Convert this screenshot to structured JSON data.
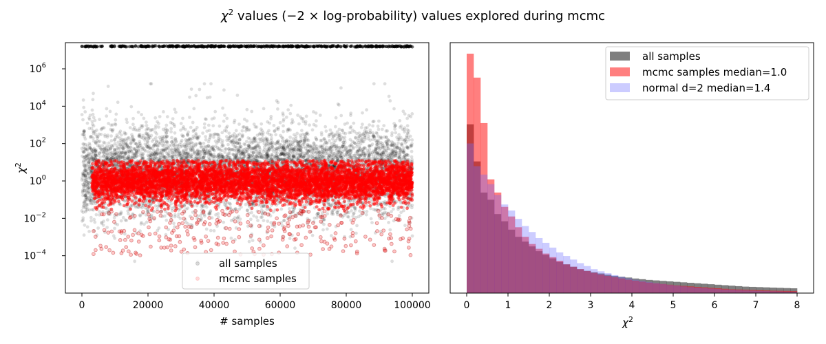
{
  "figure": {
    "title_pre": "χ",
    "title_sup": "2",
    "title_post": " values (−2 × log-probability) values explored during mcmc"
  },
  "chart_data": [
    {
      "type": "scatter",
      "xlabel": "# samples",
      "ylabel_base": "χ",
      "ylabel_sup": "2",
      "x_range": [
        -5000,
        105000
      ],
      "y_scale": "log",
      "y_range_log10": [
        -6,
        7.4
      ],
      "x_ticks": [
        0,
        20000,
        40000,
        60000,
        80000,
        100000
      ],
      "x_tick_labels": [
        "0",
        "20000",
        "40000",
        "60000",
        "80000",
        "100000"
      ],
      "y_ticks_log10": [
        -4,
        -2,
        0,
        2,
        4,
        6
      ],
      "y_tick_base": "10",
      "y_tick_exponents": [
        "−4",
        "−2",
        "0",
        "2",
        "4",
        "6"
      ],
      "grid": false,
      "legend_placement": "bottom-center",
      "series": [
        {
          "name": "all samples",
          "color": "#000000",
          "x_range": [
            0,
            100000
          ],
          "upper_band_log10": 7.2,
          "core_log10_range": [
            -1.5,
            2.5
          ],
          "spread_log10_range": [
            -3.5,
            5
          ]
        },
        {
          "name": "mcmc samples",
          "color": "#ff0000",
          "x_range": [
            3000,
            100000
          ],
          "core_log10_range": [
            -1.2,
            1.2
          ],
          "spread_log10_range": [
            -4.5,
            1.5
          ]
        }
      ]
    },
    {
      "type": "histogram",
      "xlabel_base": "χ",
      "xlabel_sup": "2",
      "x_range": [
        -0.4,
        8.4
      ],
      "x_ticks": [
        0,
        1,
        2,
        3,
        4,
        5,
        6,
        7,
        8
      ],
      "x_tick_labels": [
        "0",
        "1",
        "2",
        "3",
        "4",
        "5",
        "6",
        "7",
        "8"
      ],
      "y_ticks_visible": false,
      "y_max": 1.0,
      "bin_edges_range": [
        0,
        8
      ],
      "bin_count": 48,
      "legend_placement": "top-right",
      "series": [
        {
          "name": "all samples",
          "color": "#000000",
          "opacity": 0.5,
          "values": [
            0.705,
            0.55,
            0.42,
            0.39,
            0.33,
            0.3,
            0.265,
            0.235,
            0.215,
            0.195,
            0.175,
            0.16,
            0.145,
            0.13,
            0.12,
            0.11,
            0.1,
            0.093,
            0.087,
            0.082,
            0.077,
            0.072,
            0.068,
            0.065,
            0.061,
            0.058,
            0.055,
            0.053,
            0.051,
            0.049,
            0.047,
            0.045,
            0.043,
            0.041,
            0.039,
            0.037,
            0.035,
            0.033,
            0.031,
            0.029,
            0.027,
            0.026,
            0.025,
            0.024,
            0.023,
            0.022,
            0.021,
            0.02
          ]
        },
        {
          "name": "mcmc samples median=1.0",
          "color": "#ff0000",
          "opacity": 0.5,
          "values": [
            1.0,
            0.9,
            0.71,
            0.475,
            0.42,
            0.36,
            0.32,
            0.275,
            0.235,
            0.205,
            0.185,
            0.165,
            0.15,
            0.135,
            0.12,
            0.11,
            0.1,
            0.092,
            0.085,
            0.078,
            0.072,
            0.066,
            0.061,
            0.056,
            0.052,
            0.048,
            0.044,
            0.041,
            0.038,
            0.035,
            0.032,
            0.03,
            0.028,
            0.026,
            0.024,
            0.022,
            0.02,
            0.018,
            0.016,
            0.015,
            0.014,
            0.013,
            0.012,
            0.011,
            0.01,
            0.0095,
            0.009,
            0.0085
          ]
        },
        {
          "name": "normal d=2 median=1.4",
          "color": "#6e6eff",
          "opacity": 0.35,
          "values": [
            0.625,
            0.53,
            0.495,
            0.455,
            0.41,
            0.37,
            0.345,
            0.31,
            0.28,
            0.255,
            0.23,
            0.21,
            0.19,
            0.17,
            0.155,
            0.14,
            0.125,
            0.113,
            0.1,
            0.091,
            0.083,
            0.075,
            0.068,
            0.062,
            0.056,
            0.051,
            0.046,
            0.042,
            0.038,
            0.034,
            0.031,
            0.028,
            0.025,
            0.023,
            0.021,
            0.019,
            0.017,
            0.015,
            0.014,
            0.0125,
            0.0113,
            0.0102,
            0.0092,
            0.0083,
            0.0075,
            0.0068,
            0.0061,
            0.0055
          ]
        }
      ]
    }
  ]
}
